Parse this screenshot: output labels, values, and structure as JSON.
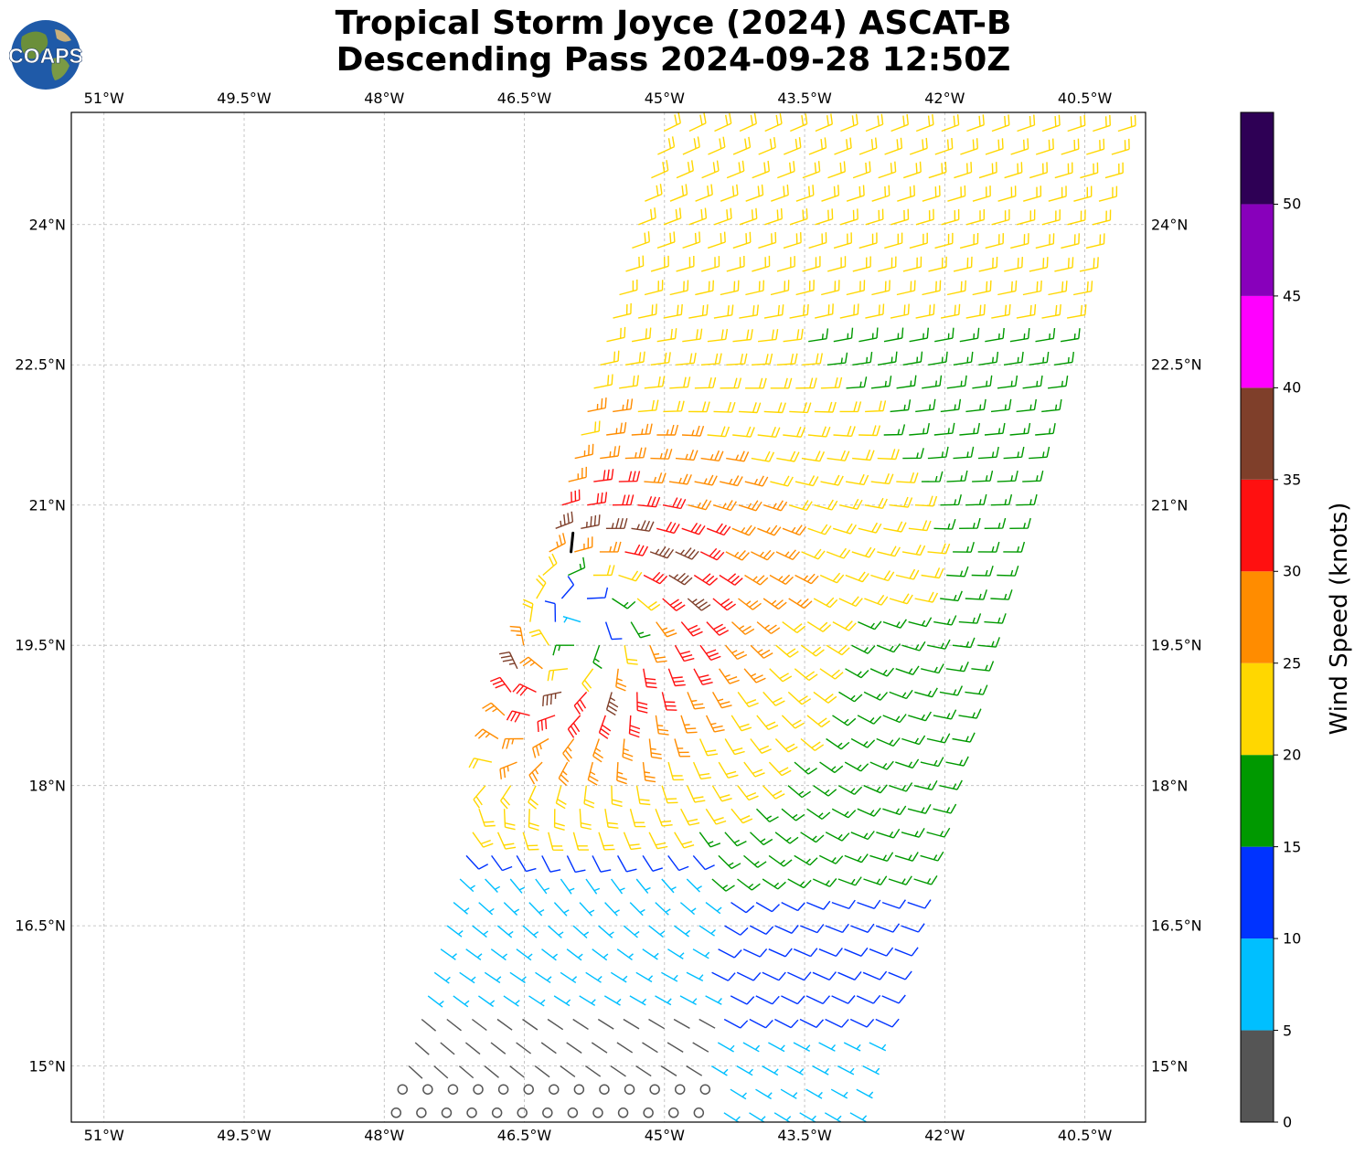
{
  "title_line1": "Tropical Storm Joyce (2024) ASCAT-B",
  "title_line2": "Descending Pass 2024-09-28 12:50Z",
  "logo_text": "COAPS",
  "lon_labels": [
    "51°W",
    "49.5°W",
    "48°W",
    "46.5°W",
    "45°W",
    "43.5°W",
    "42°W",
    "40.5°W"
  ],
  "lat_labels": [
    "24°N",
    "22.5°N",
    "21°N",
    "19.5°N",
    "18°N",
    "16.5°N",
    "15°N"
  ],
  "map_data": {
    "type": "wind-barbs",
    "lon_range": [
      -51.35,
      -39.85
    ],
    "lat_range": [
      14.4,
      25.2
    ],
    "lon_ticks": [
      -51,
      -49.5,
      -48,
      -46.5,
      -45,
      -43.5,
      -42,
      -40.5
    ],
    "lat_ticks": [
      24,
      22.5,
      21,
      19.5,
      18,
      16.5,
      15
    ],
    "grid": true,
    "storm_center": {
      "lon": -45.85,
      "lat": 19.85
    },
    "storm_track": [
      [
        -46.0,
        20.5
      ],
      [
        -45.98,
        20.7
      ]
    ],
    "swath_corners": [
      [
        -44.95,
        25.2
      ],
      [
        -39.85,
        25.2
      ],
      [
        -43.0,
        14.4
      ],
      [
        -47.9,
        14.4
      ]
    ],
    "max_wind_kt": 36,
    "wind_unit": "knots"
  },
  "colorbar": {
    "title": "Wind Speed (knots)",
    "bounds": [
      0,
      5,
      10,
      15,
      20,
      25,
      30,
      35,
      40,
      45,
      50,
      55
    ],
    "tick_labels": [
      "0",
      "5",
      "10",
      "15",
      "20",
      "25",
      "30",
      "35",
      "40",
      "45",
      "50"
    ],
    "colors": [
      "#555555",
      "#00bfff",
      "#0033ff",
      "#009900",
      "#ffd700",
      "#ff8c00",
      "#ff1010",
      "#7f3f2a",
      "#ff00ff",
      "#8800bb",
      "#2e0055"
    ]
  }
}
